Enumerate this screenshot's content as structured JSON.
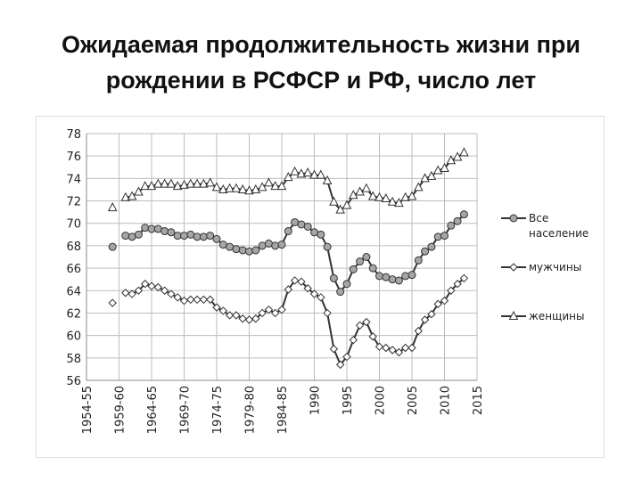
{
  "chart_data": {
    "type": "line",
    "title": "Ожидаемая продолжительность жизни при рождении в РСФСР и РФ, число лет",
    "x": [
      1959,
      1960,
      1961,
      1962,
      1963,
      1964,
      1965,
      1966,
      1967,
      1968,
      1969,
      1970,
      1971,
      1972,
      1973,
      1974,
      1975,
      1976,
      1977,
      1978,
      1979,
      1980,
      1981,
      1982,
      1983,
      1984,
      1985,
      1986,
      1987,
      1988,
      1989,
      1990,
      1991,
      1992,
      1993,
      1994,
      1995,
      1996,
      1997,
      1998,
      1999,
      2000,
      2001,
      2002,
      2003,
      2004,
      2005,
      2006,
      2007,
      2008,
      2009,
      2010,
      2011,
      2012,
      2013
    ],
    "series": [
      {
        "name": "Все население",
        "color": "#333333",
        "marker": "circle",
        "values": [
          67.9,
          null,
          68.9,
          68.8,
          69.0,
          69.6,
          69.5,
          69.5,
          69.3,
          69.2,
          68.9,
          68.9,
          69.0,
          68.8,
          68.8,
          68.9,
          68.6,
          68.1,
          67.9,
          67.7,
          67.6,
          67.5,
          67.6,
          68.0,
          68.2,
          68.0,
          68.1,
          69.3,
          70.1,
          69.9,
          69.7,
          69.2,
          69.0,
          67.9,
          65.1,
          63.9,
          64.6,
          65.9,
          66.6,
          67.0,
          66.0,
          65.3,
          65.2,
          65.0,
          64.9,
          65.3,
          65.4,
          66.7,
          67.5,
          67.9,
          68.8,
          68.9,
          69.8,
          70.2,
          70.8
        ]
      },
      {
        "name": "мужчины",
        "color": "#333333",
        "marker": "diamond",
        "values": [
          62.9,
          null,
          63.8,
          63.7,
          64.0,
          64.6,
          64.4,
          64.3,
          64.0,
          63.7,
          63.4,
          63.1,
          63.2,
          63.2,
          63.2,
          63.2,
          62.5,
          62.2,
          61.8,
          61.8,
          61.5,
          61.4,
          61.5,
          62.0,
          62.3,
          62.0,
          62.3,
          64.1,
          64.9,
          64.8,
          64.2,
          63.7,
          63.4,
          62.0,
          58.8,
          57.4,
          58.1,
          59.6,
          60.9,
          61.2,
          59.9,
          59.0,
          58.9,
          58.7,
          58.5,
          58.9,
          58.9,
          60.4,
          61.4,
          61.9,
          62.8,
          63.1,
          64.0,
          64.6,
          65.1
        ]
      },
      {
        "name": "женщины",
        "color": "#333333",
        "marker": "triangle",
        "values": [
          71.4,
          null,
          72.3,
          72.4,
          72.8,
          73.3,
          73.3,
          73.5,
          73.5,
          73.5,
          73.3,
          73.4,
          73.5,
          73.5,
          73.5,
          73.6,
          73.2,
          73.0,
          73.1,
          73.1,
          73.0,
          72.9,
          73.0,
          73.2,
          73.6,
          73.3,
          73.3,
          74.1,
          74.6,
          74.4,
          74.5,
          74.3,
          74.3,
          73.8,
          71.9,
          71.2,
          71.6,
          72.5,
          72.8,
          73.1,
          72.4,
          72.3,
          72.2,
          71.9,
          71.8,
          72.3,
          72.4,
          73.2,
          74.0,
          74.2,
          74.7,
          74.9,
          75.6,
          75.9,
          76.3
        ]
      }
    ],
    "xlim": [
      1955,
      2015
    ],
    "xticks": [
      {
        "value": 1955,
        "label": "1954-55"
      },
      {
        "value": 1960,
        "label": "1959-60"
      },
      {
        "value": 1965,
        "label": "1964-65"
      },
      {
        "value": 1970,
        "label": "1969-70"
      },
      {
        "value": 1975,
        "label": "1974-75"
      },
      {
        "value": 1980,
        "label": "1979-80"
      },
      {
        "value": 1985,
        "label": "1984-85"
      },
      1990,
      1995,
      2000,
      2005,
      2010,
      2015
    ],
    "ylim": [
      56,
      78
    ],
    "yticks": [
      56,
      58,
      60,
      62,
      64,
      66,
      68,
      70,
      72,
      74,
      76,
      78
    ],
    "grid": true
  }
}
